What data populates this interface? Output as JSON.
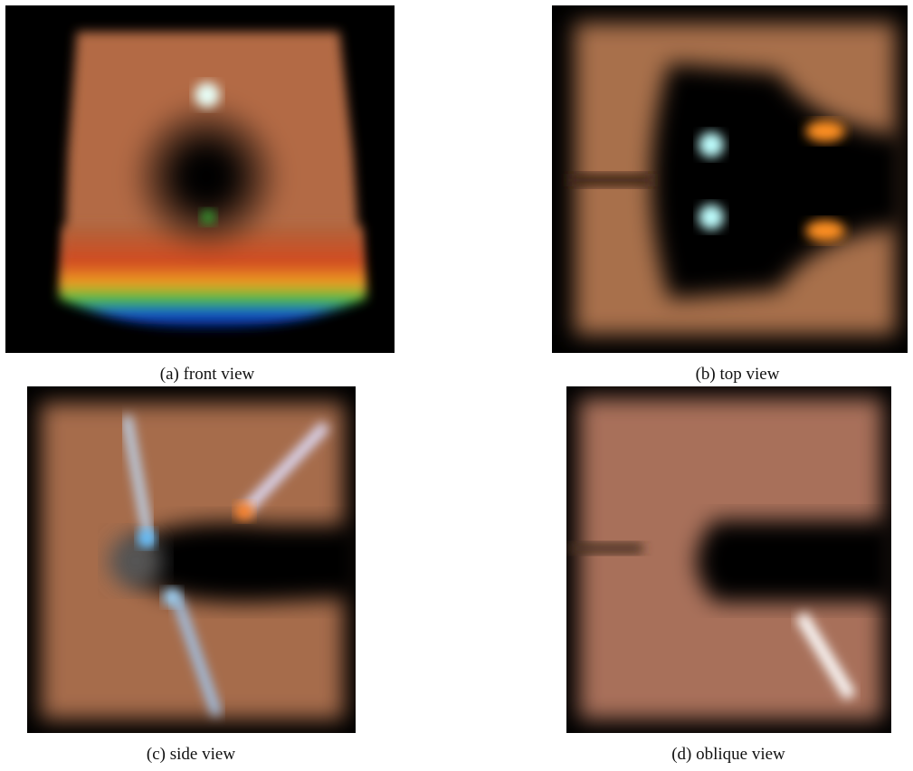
{
  "figure": {
    "panels": [
      {
        "caption": "(a) front view"
      },
      {
        "caption": "(b) top view"
      },
      {
        "caption": "(c) side view"
      },
      {
        "caption": "(d) oblique view"
      }
    ]
  }
}
